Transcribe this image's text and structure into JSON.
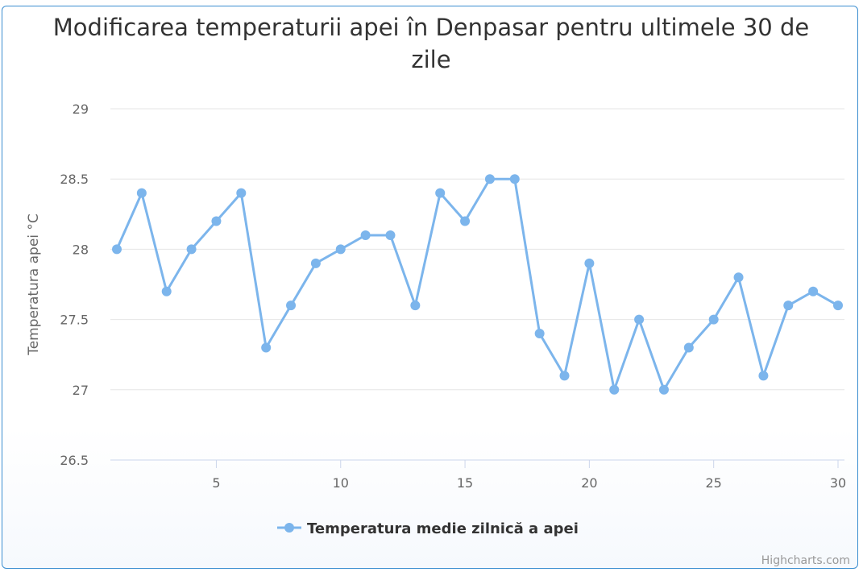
{
  "chart_data": {
    "type": "line",
    "title": "Modificarea temperaturii apei în Denpasar pentru ultimele 30 de zile",
    "ylabel": "Temperatura apei °C",
    "xlabel": "",
    "xlim": [
      1,
      30
    ],
    "ylim": [
      26.5,
      29
    ],
    "x_ticks": [
      5,
      10,
      15,
      20,
      25,
      30
    ],
    "y_ticks": [
      26.5,
      27,
      27.5,
      28,
      28.5,
      29
    ],
    "y_tick_labels": [
      "26.5",
      "27",
      "27.5",
      "28",
      "28.5",
      "29"
    ],
    "grid": "horizontal",
    "legend_position": "bottom-center",
    "x": [
      1,
      2,
      3,
      4,
      5,
      6,
      7,
      8,
      9,
      10,
      11,
      12,
      13,
      14,
      15,
      16,
      17,
      18,
      19,
      20,
      21,
      22,
      23,
      24,
      25,
      26,
      27,
      28,
      29,
      30
    ],
    "series": [
      {
        "name": "Temperatura medie zilnică a apei",
        "color": "#7cb5ec",
        "values": [
          28.0,
          28.4,
          27.7,
          28.0,
          28.2,
          28.4,
          27.3,
          27.6,
          27.9,
          28.0,
          28.1,
          28.1,
          27.6,
          28.4,
          28.2,
          28.5,
          28.5,
          27.4,
          27.1,
          27.9,
          27.0,
          27.5,
          27.0,
          27.3,
          27.5,
          27.8,
          27.1,
          27.6,
          27.7,
          27.6
        ]
      }
    ]
  },
  "credits": "Highcharts.com"
}
